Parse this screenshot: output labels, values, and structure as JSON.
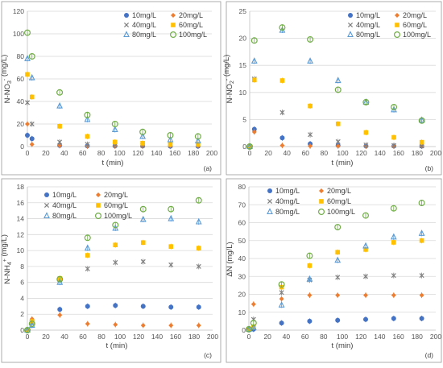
{
  "colors": {
    "10mg/L": "#4472c4",
    "20mg/L": "#ed7d31",
    "40mg/L": "#7f7f7f",
    "60mg/L": "#ffc000",
    "80mg/L": "#5b9bd5",
    "100mg/L": "#70ad47"
  },
  "markers": {
    "10mg/L": "circle-filled",
    "20mg/L": "diamond-filled",
    "40mg/L": "x-cross",
    "60mg/L": "square-filled",
    "80mg/L": "triangle-open",
    "100mg/L": "circle-open"
  },
  "chart_data": [
    {
      "type": "scatter",
      "panel_label": "(a)",
      "xlabel": "t (min)",
      "ylabel": "N-NO3- (mg/L)",
      "ylabel_main": "N-NO",
      "ylabel_sub": "3",
      "ylabel_sup": "-",
      "ylabel_tail": " (mg/L)",
      "xlim": [
        0,
        200
      ],
      "ylim": [
        0,
        120
      ],
      "xticks": [
        0,
        20,
        40,
        60,
        80,
        100,
        120,
        140,
        160,
        180,
        200
      ],
      "yticks": [
        0,
        20,
        40,
        60,
        80,
        100,
        120
      ],
      "legend_position": "top-right",
      "series": [
        {
          "name": "10mg/L",
          "x": [
            0,
            5,
            35,
            65,
            95,
            125,
            155,
            185
          ],
          "y": [
            10,
            7,
            1,
            0.5,
            0.5,
            0.5,
            0.3,
            0.3
          ]
        },
        {
          "name": "20mg/L",
          "x": [
            0,
            5,
            35,
            65,
            95,
            125,
            155,
            185
          ],
          "y": [
            20,
            2,
            1,
            0.5,
            0.5,
            0.5,
            0.5,
            0.5
          ]
        },
        {
          "name": "40mg/L",
          "x": [
            0,
            5,
            35,
            65,
            95,
            125,
            155,
            185
          ],
          "y": [
            39,
            20,
            4,
            2,
            1.5,
            1,
            1,
            1
          ]
        },
        {
          "name": "60mg/L",
          "x": [
            0,
            5,
            35,
            65,
            95,
            125,
            155,
            185
          ],
          "y": [
            64,
            44,
            18,
            9,
            4,
            3,
            2,
            2
          ]
        },
        {
          "name": "80mg/L",
          "x": [
            0,
            5,
            35,
            65,
            95,
            125,
            155,
            185
          ],
          "y": [
            78,
            61,
            36,
            24,
            15,
            9,
            6,
            5
          ]
        },
        {
          "name": "100mg/L",
          "x": [
            0,
            5,
            35,
            65,
            95,
            125,
            155,
            185
          ],
          "y": [
            101,
            80,
            48,
            28,
            20,
            13,
            10,
            9
          ]
        }
      ]
    },
    {
      "type": "scatter",
      "panel_label": "(b)",
      "xlabel": "t (min)",
      "ylabel": "N-NO2- (mg/L)",
      "ylabel_main": "N-NO",
      "ylabel_sub": "2",
      "ylabel_sup": "-",
      "ylabel_tail": " (mg/L)",
      "xlim": [
        0,
        200
      ],
      "ylim": [
        0,
        25
      ],
      "xticks": [
        0,
        20,
        40,
        60,
        80,
        100,
        120,
        140,
        160,
        180,
        200
      ],
      "yticks": [
        0,
        5,
        10,
        15,
        20,
        25
      ],
      "legend_position": "top-right",
      "series": [
        {
          "name": "10mg/L",
          "x": [
            0,
            5,
            35,
            65,
            95,
            125,
            155,
            185
          ],
          "y": [
            0,
            3.2,
            1.6,
            0.5,
            0.2,
            0.1,
            0.1,
            0.1
          ]
        },
        {
          "name": "20mg/L",
          "x": [
            0,
            5,
            35,
            65,
            95,
            125,
            155,
            185
          ],
          "y": [
            0,
            2.7,
            0.2,
            0.1,
            0.1,
            0.1,
            0.1,
            0.1
          ]
        },
        {
          "name": "40mg/L",
          "x": [
            0,
            5,
            35,
            65,
            95,
            125,
            155,
            185
          ],
          "y": [
            0,
            12.5,
            6.3,
            2.2,
            0.9,
            0.3,
            0.2,
            0.1
          ]
        },
        {
          "name": "60mg/L",
          "x": [
            0,
            5,
            35,
            65,
            95,
            125,
            155,
            185
          ],
          "y": [
            0,
            12.3,
            12.2,
            7.5,
            4.2,
            2.6,
            1.7,
            0.8
          ]
        },
        {
          "name": "80mg/L",
          "x": [
            0,
            5,
            35,
            65,
            95,
            125,
            155,
            185
          ],
          "y": [
            0,
            15.8,
            21.5,
            15.8,
            12.2,
            8.2,
            6.8,
            4.9
          ]
        },
        {
          "name": "100mg/L",
          "x": [
            0,
            5,
            35,
            65,
            95,
            125,
            155,
            185
          ],
          "y": [
            0,
            19.6,
            22.0,
            19.8,
            10.5,
            8.2,
            7.3,
            4.8
          ]
        }
      ]
    },
    {
      "type": "scatter",
      "panel_label": "(c)",
      "xlabel": "t (min)",
      "ylabel": "N-NH4+ (mg/L)",
      "ylabel_main": "N-NH",
      "ylabel_sub": "4",
      "ylabel_sup": "+",
      "ylabel_tail": " (mg/L)",
      "xlim": [
        0,
        200
      ],
      "ylim": [
        0,
        18
      ],
      "xticks": [
        0,
        20,
        40,
        60,
        80,
        100,
        120,
        140,
        160,
        180,
        200
      ],
      "yticks": [
        0,
        2,
        4,
        6,
        8,
        10,
        12,
        14,
        16,
        18
      ],
      "legend_position": "top-left",
      "series": [
        {
          "name": "10mg/L",
          "x": [
            0,
            5,
            35,
            65,
            95,
            125,
            155,
            185
          ],
          "y": [
            0,
            1.2,
            2.6,
            3.0,
            3.1,
            3.0,
            2.9,
            2.9
          ]
        },
        {
          "name": "20mg/L",
          "x": [
            0,
            5,
            35,
            65,
            95,
            125,
            155,
            185
          ],
          "y": [
            0,
            1.4,
            1.9,
            0.8,
            0.7,
            0.6,
            0.6,
            0.6
          ]
        },
        {
          "name": "40mg/L",
          "x": [
            0,
            5,
            35,
            65,
            95,
            125,
            155,
            185
          ],
          "y": [
            0,
            1.0,
            6.3,
            7.7,
            8.5,
            8.6,
            8.2,
            8.0
          ]
        },
        {
          "name": "60mg/L",
          "x": [
            0,
            5,
            35,
            65,
            95,
            125,
            155,
            185
          ],
          "y": [
            0,
            1.1,
            6.5,
            9.4,
            10.7,
            11.0,
            10.5,
            10.3
          ]
        },
        {
          "name": "80mg/L",
          "x": [
            0,
            5,
            35,
            65,
            95,
            125,
            155,
            185
          ],
          "y": [
            0,
            0.6,
            6.0,
            10.3,
            12.8,
            13.9,
            14.0,
            13.6
          ]
        },
        {
          "name": "100mg/L",
          "x": [
            0,
            5,
            35,
            65,
            95,
            125,
            155,
            185
          ],
          "y": [
            0,
            0.8,
            6.4,
            11.6,
            13.2,
            15.2,
            15.2,
            16.3
          ]
        }
      ]
    },
    {
      "type": "scatter",
      "panel_label": "(d)",
      "xlabel": "t (min)",
      "ylabel": "ΔN (mg/L)",
      "ylabel_main": "ΔN",
      "ylabel_sub": "",
      "ylabel_sup": "",
      "ylabel_tail": " (mg/L)",
      "xlim": [
        0,
        200
      ],
      "ylim": [
        0,
        80
      ],
      "xticks": [
        0,
        20,
        40,
        60,
        80,
        100,
        120,
        140,
        160,
        180,
        200
      ],
      "yticks": [
        0,
        10,
        20,
        30,
        40,
        50,
        60,
        70,
        80
      ],
      "legend_position": "top-left",
      "series": [
        {
          "name": "10mg/L",
          "x": [
            0,
            5,
            35,
            65,
            95,
            125,
            155,
            185
          ],
          "y": [
            0.5,
            0.5,
            4,
            5,
            5.5,
            6,
            6.5,
            6.5
          ]
        },
        {
          "name": "20mg/L",
          "x": [
            0,
            5,
            35,
            65,
            95,
            125,
            155,
            185
          ],
          "y": [
            0.5,
            14.5,
            17.5,
            19.5,
            19.5,
            19.5,
            19.5,
            19.5
          ]
        },
        {
          "name": "40mg/L",
          "x": [
            0,
            5,
            35,
            65,
            95,
            125,
            155,
            185
          ],
          "y": [
            0.5,
            6,
            21,
            28,
            29.5,
            30,
            30.5,
            30.5
          ]
        },
        {
          "name": "60mg/L",
          "x": [
            0,
            5,
            35,
            65,
            95,
            125,
            155,
            185
          ],
          "y": [
            0.5,
            2,
            24,
            36,
            43.5,
            45,
            49,
            50
          ]
        },
        {
          "name": "80mg/L",
          "x": [
            0,
            5,
            35,
            65,
            95,
            125,
            155,
            185
          ],
          "y": [
            0.5,
            1.5,
            14,
            28.5,
            39,
            47,
            52,
            54
          ]
        },
        {
          "name": "100mg/L",
          "x": [
            0,
            5,
            35,
            65,
            95,
            125,
            155,
            185
          ],
          "y": [
            0.5,
            4,
            25.5,
            41.5,
            57.5,
            64,
            68,
            71
          ]
        }
      ]
    }
  ]
}
